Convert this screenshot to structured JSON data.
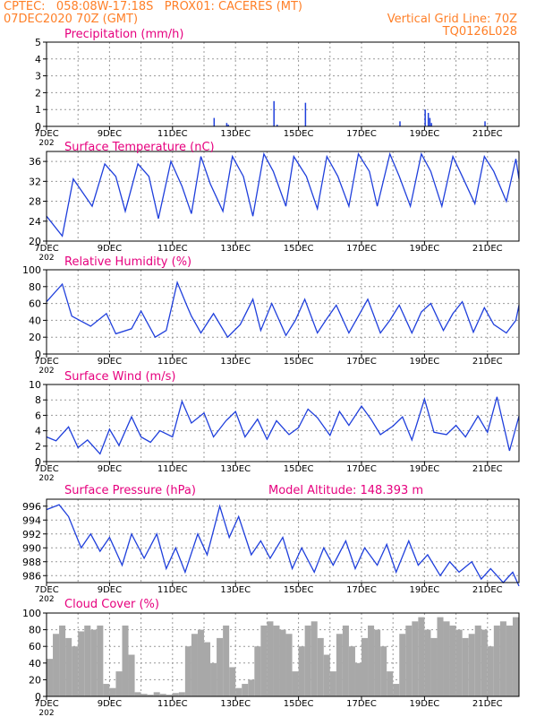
{
  "header": {
    "line1": "CPTEC:   058:08W-17:18S   PROX01: CACERES (MT)",
    "line2": "07DEC2020 70Z (GMT)",
    "grid_note": "Vertical Grid Line: 70Z",
    "code": "TQ0126L028",
    "colors": {
      "header": "#ff7f27",
      "title": "#e6007e",
      "series": "#1f3fdc",
      "cloud": "#a8a8a8"
    }
  },
  "x_axis": {
    "day_min": 7,
    "day_max": 22,
    "tick_labels": [
      {
        "label": "7DEC",
        "day": 7
      },
      {
        "label": "9DEC",
        "day": 9
      },
      {
        "label": "11DEC",
        "day": 11
      },
      {
        "label": "13DEC",
        "day": 13
      },
      {
        "label": "15DEC",
        "day": 15
      },
      {
        "label": "17DEC",
        "day": 17
      },
      {
        "label": "19DEC",
        "day": 19
      },
      {
        "label": "21DEC",
        "day": 21
      }
    ],
    "clipped_label": "202"
  },
  "chart_data": [
    {
      "type": "bar",
      "title": "Precipitation (mm/h)",
      "ylim": [
        0,
        5
      ],
      "yticks": [
        "0",
        "1",
        "2",
        "3",
        "4",
        "5"
      ],
      "x": [
        12.3,
        12.7,
        12.75,
        14.2,
        14.3,
        15.2,
        18.2,
        19.0,
        19.1,
        19.15,
        19.2,
        20.9
      ],
      "values": [
        0.5,
        0.2,
        0.1,
        1.5,
        0.1,
        1.4,
        0.3,
        1.0,
        0.8,
        0.5,
        0.2,
        0.3
      ]
    },
    {
      "type": "line",
      "title": "Surface Temperature (nC)",
      "ylim": [
        20,
        38
      ],
      "yticks": [
        "20",
        "24",
        "28",
        "32",
        "36"
      ],
      "x": [
        7.0,
        7.5,
        7.85,
        8.45,
        8.85,
        9.2,
        9.5,
        9.9,
        10.25,
        10.55,
        10.95,
        11.3,
        11.6,
        11.9,
        12.2,
        12.6,
        12.9,
        13.25,
        13.55,
        13.9,
        14.2,
        14.6,
        14.85,
        15.25,
        15.6,
        15.9,
        16.25,
        16.6,
        16.9,
        17.25,
        17.5,
        17.9,
        18.2,
        18.55,
        18.9,
        19.2,
        19.55,
        19.9,
        20.2,
        20.6,
        20.9,
        21.2,
        21.6,
        21.9,
        22.0
      ],
      "values": [
        25,
        21,
        32.5,
        27,
        35.5,
        33,
        26,
        35.5,
        33,
        24.5,
        36,
        31,
        25.5,
        37,
        31.5,
        26,
        37,
        33,
        25,
        37.5,
        34,
        27,
        37,
        33,
        26.5,
        37,
        33,
        27,
        37.5,
        34,
        27,
        37.5,
        33,
        27,
        37.5,
        34,
        27,
        37,
        33,
        27.5,
        37,
        34,
        28,
        36.5,
        32.5
      ]
    },
    {
      "type": "line",
      "title": "Relative Humidity (%)",
      "ylim": [
        0,
        100
      ],
      "yticks": [
        "0",
        "20",
        "40",
        "60",
        "80",
        "100"
      ],
      "x": [
        7.0,
        7.5,
        7.8,
        8.4,
        8.9,
        9.2,
        9.7,
        10.0,
        10.45,
        10.8,
        11.15,
        11.45,
        11.6,
        11.9,
        12.3,
        12.75,
        13.15,
        13.55,
        13.8,
        14.15,
        14.6,
        14.9,
        15.2,
        15.6,
        15.9,
        16.2,
        16.6,
        16.9,
        17.2,
        17.6,
        17.9,
        18.2,
        18.6,
        18.9,
        19.2,
        19.6,
        19.9,
        20.2,
        20.55,
        20.9,
        21.2,
        21.6,
        21.9,
        22.0
      ],
      "values": [
        62,
        83,
        45,
        33,
        48,
        24,
        30,
        51,
        20,
        28,
        85,
        58,
        45,
        25,
        48,
        20,
        35,
        65,
        28,
        60,
        22,
        40,
        65,
        25,
        42,
        58,
        25,
        45,
        65,
        25,
        40,
        58,
        25,
        50,
        60,
        28,
        48,
        62,
        26,
        55,
        35,
        25,
        40,
        58
      ]
    },
    {
      "type": "line",
      "title": "Surface Wind (m/s)",
      "ylim": [
        0,
        10
      ],
      "yticks": [
        "0",
        "2",
        "4",
        "6",
        "8",
        "10"
      ],
      "x": [
        7.0,
        7.3,
        7.7,
        8.0,
        8.3,
        8.7,
        9.0,
        9.3,
        9.7,
        10.0,
        10.3,
        10.6,
        11.0,
        11.3,
        11.6,
        12.0,
        12.3,
        12.7,
        13.0,
        13.3,
        13.7,
        14.0,
        14.3,
        14.7,
        15.0,
        15.3,
        15.6,
        16.0,
        16.3,
        16.6,
        17.0,
        17.3,
        17.6,
        18.0,
        18.3,
        18.6,
        19.0,
        19.3,
        19.7,
        20.0,
        20.3,
        20.7,
        21.0,
        21.3,
        21.7,
        22.0
      ],
      "values": [
        3.2,
        2.7,
        4.5,
        1.8,
        2.8,
        1.0,
        4.2,
        2.1,
        5.8,
        3.2,
        2.5,
        4.0,
        3.2,
        7.8,
        5.0,
        6.3,
        3.2,
        5.3,
        6.5,
        3.2,
        5.5,
        2.9,
        5.3,
        3.5,
        4.4,
        6.8,
        5.7,
        3.4,
        6.5,
        4.7,
        7.2,
        5.5,
        3.5,
        4.6,
        5.8,
        2.8,
        8.1,
        3.8,
        3.5,
        4.7,
        3.2,
        5.9,
        3.8,
        8.4,
        1.4,
        5.9
      ]
    },
    {
      "type": "line",
      "title": "Surface Pressure (hPa)",
      "subtitle": "Model Altitude: 148.393 m",
      "ylim": [
        985,
        997
      ],
      "yticks": [
        "986",
        "988",
        "990",
        "992",
        "994",
        "996"
      ],
      "x": [
        7.0,
        7.4,
        7.7,
        8.1,
        8.4,
        8.7,
        9.0,
        9.4,
        9.7,
        10.1,
        10.5,
        10.8,
        11.1,
        11.4,
        11.8,
        12.1,
        12.5,
        12.8,
        13.1,
        13.5,
        13.8,
        14.1,
        14.5,
        14.8,
        15.1,
        15.5,
        15.8,
        16.1,
        16.5,
        16.8,
        17.1,
        17.5,
        17.8,
        18.1,
        18.5,
        18.8,
        19.1,
        19.5,
        19.8,
        20.1,
        20.5,
        20.8,
        21.1,
        21.5,
        21.8,
        22.0
      ],
      "values": [
        995.5,
        996.2,
        994.5,
        990,
        992,
        989.5,
        991.5,
        987.5,
        992,
        988.5,
        992,
        987,
        990,
        986.5,
        992,
        989,
        996,
        991.5,
        994.5,
        989,
        991,
        988.5,
        991.5,
        987,
        990,
        986.5,
        990,
        987.5,
        991,
        987,
        990,
        987.5,
        990.5,
        986.5,
        991,
        987.5,
        989,
        986,
        988,
        986.5,
        988,
        985.5,
        987,
        985,
        986.5,
        984.5
      ]
    },
    {
      "type": "bar",
      "title": "Cloud Cover (%)",
      "ylim": [
        0,
        100
      ],
      "yticks": [
        "0",
        "20",
        "40",
        "60",
        "80",
        "100"
      ],
      "x": [
        7.0,
        7.2,
        7.4,
        7.6,
        7.8,
        8.0,
        8.2,
        8.4,
        8.6,
        8.8,
        9.0,
        9.2,
        9.4,
        9.6,
        9.8,
        10.0,
        10.2,
        10.4,
        10.6,
        10.8,
        11.0,
        11.2,
        11.4,
        11.6,
        11.8,
        12.0,
        12.2,
        12.4,
        12.6,
        12.8,
        13.0,
        13.2,
        13.4,
        13.6,
        13.8,
        14.0,
        14.2,
        14.4,
        14.6,
        14.8,
        15.0,
        15.2,
        15.4,
        15.6,
        15.8,
        16.0,
        16.2,
        16.4,
        16.6,
        16.8,
        17.0,
        17.2,
        17.4,
        17.6,
        17.8,
        18.0,
        18.2,
        18.4,
        18.6,
        18.8,
        19.0,
        19.2,
        19.4,
        19.6,
        19.8,
        20.0,
        20.2,
        20.4,
        20.6,
        20.8,
        21.0,
        21.2,
        21.4,
        21.6,
        21.8
      ],
      "values": [
        45,
        75,
        85,
        70,
        60,
        78,
        85,
        80,
        85,
        15,
        10,
        30,
        85,
        50,
        5,
        3,
        2,
        5,
        3,
        2,
        4,
        5,
        60,
        75,
        80,
        65,
        40,
        70,
        85,
        35,
        10,
        15,
        20,
        60,
        85,
        90,
        85,
        80,
        75,
        30,
        60,
        85,
        90,
        70,
        50,
        30,
        75,
        85,
        60,
        40,
        70,
        85,
        80,
        60,
        30,
        15,
        75,
        85,
        90,
        95,
        80,
        70,
        95,
        90,
        85,
        80,
        70,
        75,
        85,
        80,
        60,
        85,
        90,
        85,
        95
      ]
    }
  ]
}
